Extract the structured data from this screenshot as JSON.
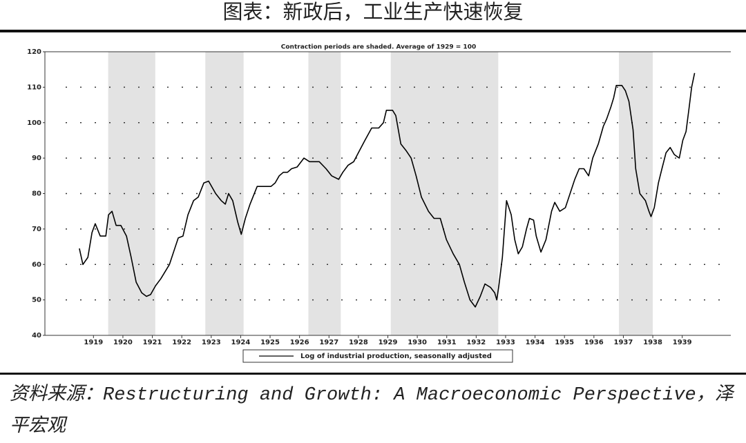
{
  "chart_data": {
    "type": "line",
    "title": "图表：新政后，工业生产快速恢复",
    "subtitle": "Contraction periods are shaded. Average of 1929 = 100",
    "source": "资料来源：Restructuring and Growth: A Macroeconomic Perspective，泽平宏观",
    "shaded": [
      [
        1920.0,
        1921.6
      ],
      [
        1923.3,
        1924.6
      ],
      [
        1926.8,
        1927.9
      ],
      [
        1929.6,
        1933.25
      ],
      [
        1937.35,
        1938.5
      ]
    ],
    "shade_color": "#e3e3e3",
    "x": [
      1919.02,
      1919.14,
      1919.31,
      1919.45,
      1919.56,
      1919.73,
      1919.92,
      1920.01,
      1920.13,
      1920.27,
      1920.43,
      1920.62,
      1920.78,
      1920.95,
      1921.14,
      1921.3,
      1921.44,
      1921.61,
      1921.79,
      1922.08,
      1922.24,
      1922.38,
      1922.54,
      1922.71,
      1922.9,
      1923.06,
      1923.25,
      1923.41,
      1923.65,
      1923.84,
      1923.98,
      1924.09,
      1924.23,
      1924.4,
      1924.52,
      1924.66,
      1924.82,
      1925.06,
      1925.31,
      1925.53,
      1925.67,
      1925.81,
      1925.95,
      1926.09,
      1926.23,
      1926.42,
      1926.65,
      1926.84,
      1927.0,
      1927.17,
      1927.4,
      1927.59,
      1927.83,
      1927.97,
      1928.15,
      1928.34,
      1928.53,
      1928.72,
      1928.95,
      1929.19,
      1929.35,
      1929.45,
      1929.66,
      1929.77,
      1929.94,
      1930.13,
      1930.29,
      1930.46,
      1930.64,
      1930.88,
      1931.07,
      1931.28,
      1931.49,
      1931.72,
      1931.93,
      1932.1,
      1932.29,
      1932.47,
      1932.64,
      1932.8,
      1932.99,
      1933.13,
      1933.2,
      1933.27,
      1933.39,
      1933.53,
      1933.69,
      1933.81,
      1933.93,
      1934.07,
      1934.21,
      1934.31,
      1934.45,
      1934.54,
      1934.7,
      1934.87,
      1935.06,
      1935.17,
      1935.34,
      1935.53,
      1935.69,
      1935.85,
      1936.0,
      1936.16,
      1936.32,
      1936.46,
      1936.65,
      1936.82,
      1936.93,
      1937.08,
      1937.17,
      1937.26,
      1937.45,
      1937.57,
      1937.69,
      1937.83,
      1937.92,
      1938.06,
      1938.25,
      1938.37,
      1938.44,
      1938.55,
      1938.69,
      1938.81,
      1938.95,
      1939.09,
      1939.23,
      1939.4,
      1939.52,
      1939.63,
      1939.73,
      1939.82,
      1939.92
    ],
    "series": [
      {
        "name": "Log of industrial production, seasonally adjusted",
        "color": "#000000",
        "values": [
          64.5,
          60,
          62,
          69,
          71.5,
          68,
          68,
          74,
          75,
          71,
          71,
          68,
          62,
          55,
          52,
          51,
          51.5,
          54,
          56,
          60,
          64,
          67.5,
          68,
          74,
          78,
          79,
          83,
          83.5,
          80,
          78,
          77,
          80,
          78,
          72,
          68.5,
          73,
          77,
          82,
          82,
          82,
          83,
          85,
          86,
          86,
          87,
          87.5,
          90,
          89,
          89,
          89,
          87,
          85,
          84,
          86,
          88,
          89,
          92,
          95,
          98.5,
          98.5,
          100,
          103.5,
          103.5,
          102,
          94,
          92,
          90,
          85,
          79,
          75,
          73,
          73,
          67,
          63,
          60,
          55,
          50,
          48,
          51,
          54.5,
          53.5,
          52,
          50,
          54,
          62,
          78,
          74,
          67,
          63,
          65,
          70,
          73,
          72.5,
          68,
          63.5,
          67,
          75,
          77.5,
          75,
          76,
          80,
          84,
          87,
          87,
          85,
          90,
          94,
          99,
          101,
          104.5,
          107,
          110.5,
          110.5,
          109,
          106,
          98,
          87,
          80,
          78,
          75,
          73.5,
          76,
          83,
          87,
          91.5,
          93,
          91,
          90,
          95,
          97.5,
          104,
          110,
          114
        ]
      }
    ],
    "xlim": [
      1917.85,
      1941.15
    ],
    "xticks": [
      {
        "value": 1919.5,
        "label": "1919"
      },
      {
        "value": 1920.5,
        "label": "1920"
      },
      {
        "value": 1921.5,
        "label": "1921"
      },
      {
        "value": 1922.5,
        "label": "1922"
      },
      {
        "value": 1923.5,
        "label": "1923"
      },
      {
        "value": 1924.5,
        "label": "1924"
      },
      {
        "value": 1925.5,
        "label": "1925"
      },
      {
        "value": 1926.5,
        "label": "1926"
      },
      {
        "value": 1927.5,
        "label": "1927"
      },
      {
        "value": 1928.5,
        "label": "1928"
      },
      {
        "value": 1929.5,
        "label": "1929"
      },
      {
        "value": 1930.5,
        "label": "1930"
      },
      {
        "value": 1931.5,
        "label": "1931"
      },
      {
        "value": 1932.5,
        "label": "1932"
      },
      {
        "value": 1933.5,
        "label": "1933"
      },
      {
        "value": 1934.5,
        "label": "1934"
      },
      {
        "value": 1935.5,
        "label": "1935"
      },
      {
        "value": 1936.5,
        "label": "1936"
      },
      {
        "value": 1937.5,
        "label": "1937"
      },
      {
        "value": 1938.5,
        "label": "1938"
      },
      {
        "value": 1939.5,
        "label": "1939"
      }
    ],
    "ylim": [
      40,
      120
    ],
    "yticks": [
      40,
      50,
      60,
      70,
      80,
      90,
      100,
      110,
      120
    ],
    "grid": true
  }
}
